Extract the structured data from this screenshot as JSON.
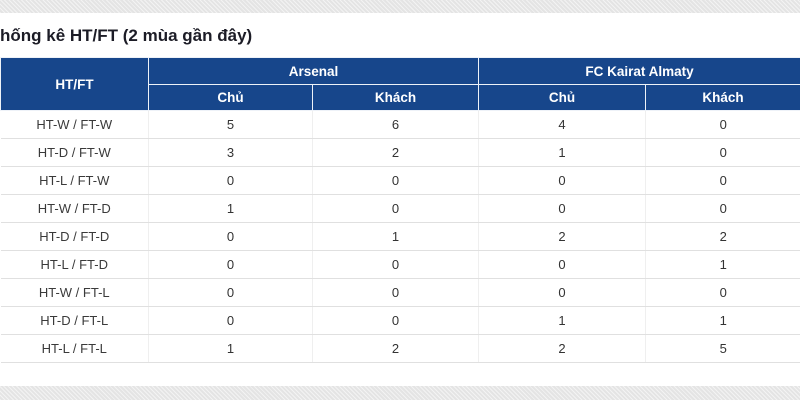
{
  "page": {
    "title": "hống kê HT/FT (2 mùa gần đây)"
  },
  "colors": {
    "header_bg": "#17468b",
    "header_text": "#ffffff",
    "body_text": "#333333",
    "row_divider": "#e0e0e0",
    "band_bg": "#e4e4e4"
  },
  "table": {
    "corner_header": "HT/FT",
    "groups": [
      {
        "label": "Arsenal",
        "sub": [
          "Chủ",
          "Khách"
        ]
      },
      {
        "label": "FC Kairat Almaty",
        "sub": [
          "Chủ",
          "Khách"
        ]
      }
    ],
    "rows": [
      {
        "label": "HT-W / FT-W",
        "values": [
          5,
          6,
          4,
          0
        ]
      },
      {
        "label": "HT-D / FT-W",
        "values": [
          3,
          2,
          1,
          0
        ]
      },
      {
        "label": "HT-L / FT-W",
        "values": [
          0,
          0,
          0,
          0
        ]
      },
      {
        "label": "HT-W / FT-D",
        "values": [
          1,
          0,
          0,
          0
        ]
      },
      {
        "label": "HT-D / FT-D",
        "values": [
          0,
          1,
          2,
          2
        ]
      },
      {
        "label": "HT-L / FT-D",
        "values": [
          0,
          0,
          0,
          1
        ]
      },
      {
        "label": "HT-W / FT-L",
        "values": [
          0,
          0,
          0,
          0
        ]
      },
      {
        "label": "HT-D / FT-L",
        "values": [
          0,
          0,
          1,
          1
        ]
      },
      {
        "label": "HT-L / FT-L",
        "values": [
          1,
          2,
          2,
          5
        ]
      }
    ]
  }
}
